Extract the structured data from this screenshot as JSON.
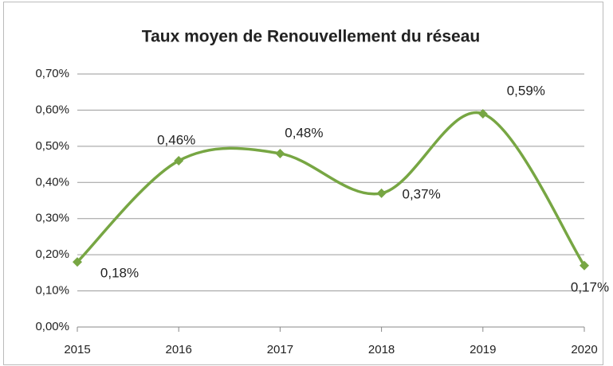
{
  "chart_data": {
    "type": "line",
    "title": "Taux moyen de Renouvellement du réseau",
    "categories": [
      "2015",
      "2016",
      "2017",
      "2018",
      "2019",
      "2020"
    ],
    "series": [
      {
        "name": "Taux moyen de Renouvellement du réseau",
        "color": "#77a643",
        "values": [
          0.18,
          0.46,
          0.48,
          0.37,
          0.59,
          0.17
        ],
        "value_labels": [
          "0,18%",
          "0,46%",
          "0,48%",
          "0,37%",
          "0,59%",
          "0,17%"
        ]
      }
    ],
    "ylim": [
      0,
      0.7
    ],
    "yticks": [
      {
        "value": 0,
        "label": "0,00%"
      },
      {
        "value": 0.1,
        "label": "0,10%"
      },
      {
        "value": 0.2,
        "label": "0,20%"
      },
      {
        "value": 0.3,
        "label": "0,30%"
      },
      {
        "value": 0.4,
        "label": "0,40%"
      },
      {
        "value": 0.5,
        "label": "0,50%"
      },
      {
        "value": 0.6,
        "label": "0,60%"
      },
      {
        "value": 0.7,
        "label": "0,70%"
      }
    ],
    "grid": true,
    "smooth": true
  }
}
